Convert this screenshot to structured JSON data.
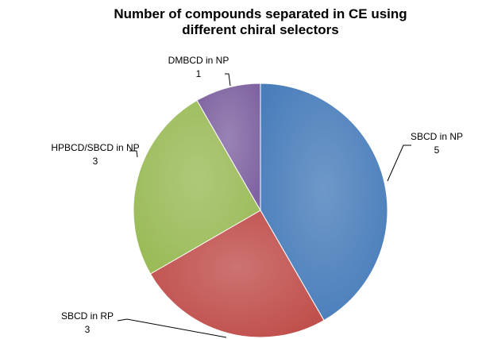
{
  "chart_data": {
    "type": "pie",
    "title": "Number of compounds separated in CE using different chiral selectors",
    "categories": [
      "SBCD in NP",
      "SBCD in RP",
      "HPBCD/SBCD in NP",
      "DMBCD in NP"
    ],
    "values": [
      5,
      3,
      3,
      1
    ],
    "colors": [
      "#4a7ebb",
      "#c0504d",
      "#9bbb59",
      "#8064a2"
    ]
  }
}
